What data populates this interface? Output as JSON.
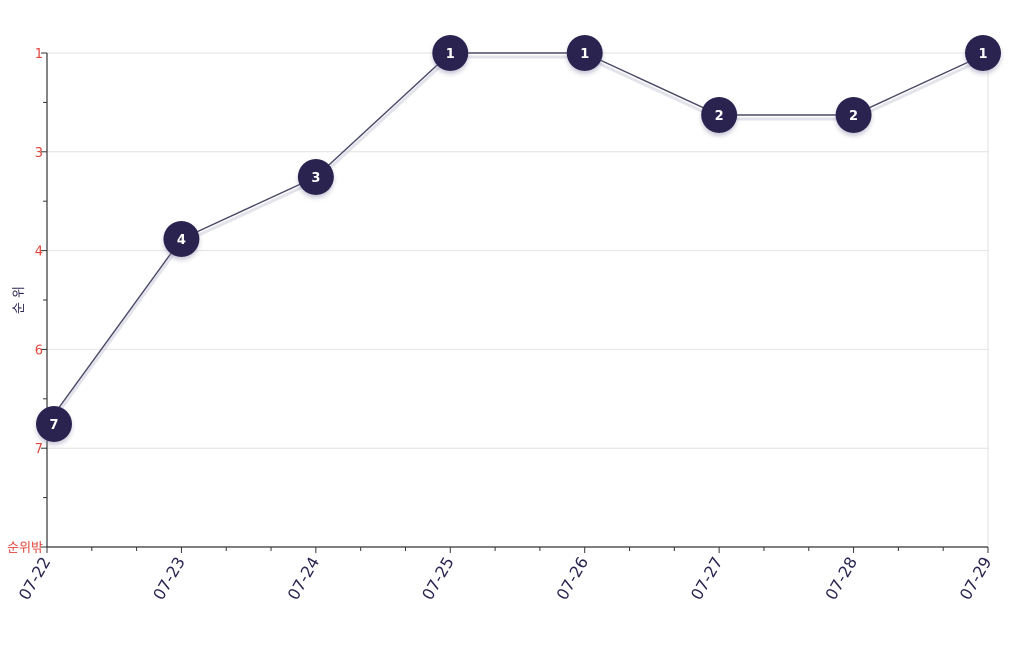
{
  "chart_data": {
    "type": "line",
    "ylabel": "순 위",
    "x": [
      "07-22",
      "07-23",
      "07-24",
      "07-25",
      "07-26",
      "07-27",
      "07-28",
      "07-29"
    ],
    "series": [
      {
        "values": [
          7,
          4,
          3,
          1,
          1,
          2,
          2,
          1
        ],
        "labels": [
          "7",
          "4",
          "3",
          "1",
          "1",
          "2",
          "2",
          "1"
        ]
      }
    ],
    "y_ticks": [
      {
        "label": "1"
      },
      {
        "label": "3"
      },
      {
        "label": "4"
      },
      {
        "label": "6"
      },
      {
        "label": "7"
      },
      {
        "label": "순위밖"
      }
    ],
    "y_reversed": true,
    "grid": true,
    "colors": {
      "line": "#4a4866",
      "marker": "#2a2150",
      "marker_text": "#ffffff",
      "y_tick_text": "#e0463c",
      "x_tick_text": "#2a2550",
      "grid": "#e2e2e2"
    }
  }
}
